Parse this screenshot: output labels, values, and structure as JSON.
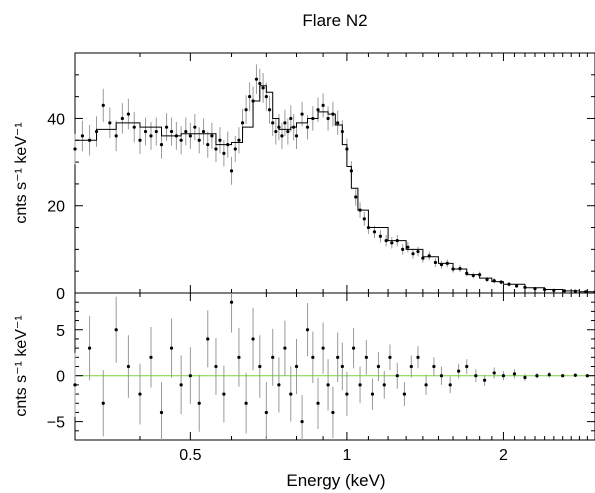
{
  "chart_data": [
    {
      "panel": "spectrum",
      "type": "scatter",
      "title": "Flare N2",
      "xlabel": "Energy (keV)",
      "ylabel": "cnts s⁻¹ keV⁻¹",
      "x_scale": "log",
      "xlim": [
        0.3,
        3.0
      ],
      "ylim": [
        0,
        55
      ],
      "yticks": [
        0,
        20,
        40
      ],
      "ytick_labels": [
        "0",
        "20",
        "40"
      ],
      "model_name": "model",
      "data_name": "data",
      "model": {
        "x": [
          0.3,
          0.33,
          0.36,
          0.4,
          0.44,
          0.48,
          0.52,
          0.56,
          0.6,
          0.63,
          0.66,
          0.68,
          0.7,
          0.72,
          0.74,
          0.76,
          0.78,
          0.8,
          0.84,
          0.88,
          0.92,
          0.95,
          0.98,
          1.0,
          1.02,
          1.05,
          1.1,
          1.2,
          1.3,
          1.4,
          1.5,
          1.6,
          1.7,
          1.8,
          1.9,
          2.0,
          2.2,
          2.4,
          2.6,
          2.8,
          3.0
        ],
        "y": [
          35.0,
          37.5,
          39.0,
          38.0,
          36.0,
          36.5,
          36.5,
          34.0,
          34.5,
          38.0,
          44.0,
          47.5,
          46.0,
          40.0,
          37.5,
          37.5,
          38.0,
          39.0,
          40.0,
          41.5,
          41.0,
          38.5,
          34.0,
          29.0,
          24.0,
          19.0,
          15.0,
          12.0,
          10.0,
          8.3,
          6.8,
          5.5,
          4.2,
          3.4,
          2.6,
          2.0,
          1.2,
          0.8,
          0.5,
          0.3,
          0.2
        ]
      },
      "data": {
        "x": [
          0.3,
          0.31,
          0.32,
          0.33,
          0.34,
          0.35,
          0.36,
          0.37,
          0.38,
          0.39,
          0.4,
          0.41,
          0.42,
          0.43,
          0.44,
          0.45,
          0.46,
          0.47,
          0.48,
          0.49,
          0.5,
          0.51,
          0.52,
          0.53,
          0.54,
          0.55,
          0.56,
          0.57,
          0.58,
          0.59,
          0.6,
          0.61,
          0.62,
          0.63,
          0.64,
          0.65,
          0.66,
          0.67,
          0.68,
          0.69,
          0.7,
          0.71,
          0.72,
          0.73,
          0.74,
          0.75,
          0.76,
          0.77,
          0.78,
          0.79,
          0.8,
          0.82,
          0.84,
          0.86,
          0.88,
          0.9,
          0.92,
          0.94,
          0.96,
          0.98,
          1.0,
          1.02,
          1.04,
          1.06,
          1.08,
          1.1,
          1.13,
          1.16,
          1.19,
          1.22,
          1.25,
          1.28,
          1.31,
          1.34,
          1.37,
          1.4,
          1.44,
          1.48,
          1.52,
          1.56,
          1.6,
          1.65,
          1.7,
          1.75,
          1.8,
          1.86,
          1.92,
          1.98,
          2.05,
          2.12,
          2.2,
          2.3,
          2.4,
          2.5,
          2.62,
          2.75,
          2.88,
          3.0
        ],
        "y": [
          33,
          36,
          35,
          37,
          43,
          39,
          36,
          40,
          41,
          38,
          35,
          37,
          36,
          37,
          34,
          38,
          37,
          36,
          35,
          37,
          36,
          38,
          35,
          37,
          34,
          36,
          33,
          35,
          32,
          34,
          28,
          33,
          35,
          39,
          42,
          45,
          44,
          49,
          48,
          47,
          45,
          42,
          39,
          37,
          38,
          36,
          39,
          37,
          40,
          38,
          36,
          41,
          38,
          40,
          42,
          43,
          40,
          41,
          39,
          37,
          33,
          28,
          22,
          19,
          17,
          15,
          14,
          13,
          12,
          11.5,
          12,
          10,
          10.5,
          9,
          9.5,
          8,
          8.5,
          7,
          6.5,
          6.8,
          5.5,
          5.6,
          4.5,
          4.0,
          4.2,
          3.1,
          2.8,
          2.5,
          2.0,
          1.6,
          1.3,
          1.0,
          0.8,
          0.6,
          0.5,
          0.4,
          0.3,
          0.2
        ],
        "err": [
          3.5,
          3.5,
          3.5,
          3.5,
          3.8,
          3.5,
          3.5,
          3.5,
          3.5,
          3.5,
          3.2,
          3.2,
          3.2,
          3.2,
          3.2,
          3.2,
          3.2,
          3.2,
          3.2,
          3.2,
          3.0,
          3.0,
          3.0,
          3.0,
          3.0,
          3.0,
          3.0,
          3.0,
          3.0,
          3.0,
          3.2,
          3.0,
          3.0,
          3.2,
          3.3,
          3.3,
          3.3,
          3.4,
          3.4,
          3.4,
          3.2,
          3.2,
          3.0,
          3.0,
          3.0,
          3.0,
          3.0,
          3.0,
          3.0,
          3.0,
          3.0,
          2.8,
          2.8,
          2.8,
          2.8,
          2.8,
          2.8,
          2.8,
          2.8,
          2.6,
          2.4,
          2.2,
          2.0,
          1.8,
          1.6,
          1.5,
          1.4,
          1.4,
          1.3,
          1.3,
          1.3,
          1.2,
          1.2,
          1.1,
          1.1,
          1.0,
          1.0,
          1.0,
          0.9,
          0.9,
          0.8,
          0.8,
          0.7,
          0.7,
          0.7,
          0.6,
          0.6,
          0.5,
          0.5,
          0.4,
          0.4,
          0.3,
          0.3,
          0.3,
          0.2,
          0.2,
          0.2,
          0.2
        ]
      }
    },
    {
      "panel": "residuals",
      "type": "scatter",
      "xlabel": "Energy (keV)",
      "ylabel": "cnts s⁻¹ keV⁻¹",
      "x_scale": "log",
      "xlim": [
        0.3,
        3.0
      ],
      "ylim": [
        -7,
        9
      ],
      "yticks": [
        -5,
        0,
        5
      ],
      "ytick_labels": [
        "−5",
        "0",
        "5"
      ],
      "xticks": [
        0.5,
        1,
        2
      ],
      "xtick_labels": [
        "0.5",
        "1",
        "2"
      ],
      "zero_line_color": "#7ad13a",
      "data": {
        "x": [
          0.3,
          0.32,
          0.34,
          0.36,
          0.38,
          0.4,
          0.42,
          0.44,
          0.46,
          0.48,
          0.5,
          0.52,
          0.54,
          0.56,
          0.58,
          0.6,
          0.62,
          0.64,
          0.66,
          0.68,
          0.7,
          0.72,
          0.74,
          0.76,
          0.78,
          0.8,
          0.82,
          0.84,
          0.86,
          0.88,
          0.9,
          0.92,
          0.94,
          0.96,
          0.98,
          1.0,
          1.03,
          1.06,
          1.09,
          1.12,
          1.15,
          1.18,
          1.21,
          1.25,
          1.29,
          1.33,
          1.37,
          1.42,
          1.47,
          1.52,
          1.58,
          1.64,
          1.7,
          1.77,
          1.84,
          1.92,
          2.0,
          2.1,
          2.2,
          2.32,
          2.45,
          2.6,
          2.75,
          2.9
        ],
        "y": [
          -1,
          3,
          -3,
          5,
          1,
          -2,
          2,
          -4,
          3,
          -1,
          0,
          -3,
          4,
          1,
          -2,
          8,
          2,
          -3,
          4,
          1,
          -4,
          2,
          -1,
          3,
          -2,
          1,
          -5,
          5,
          2,
          -3,
          3,
          -1,
          -4,
          2,
          1,
          -2,
          3,
          -1,
          2,
          -2,
          1,
          -1,
          2,
          0,
          -2,
          1,
          2,
          -1,
          1,
          0,
          -1,
          0.5,
          1,
          0,
          -0.5,
          0.3,
          0,
          0.2,
          -0.2,
          0,
          0.1,
          0,
          0.05,
          0
        ],
        "err": [
          3.5,
          3.5,
          3.6,
          3.6,
          3.4,
          3.3,
          3.3,
          3.3,
          3.2,
          3.2,
          3.1,
          3.1,
          3.1,
          3.1,
          3.1,
          3.3,
          3.2,
          3.3,
          3.4,
          3.4,
          3.3,
          3.1,
          3.0,
          3.0,
          3.0,
          3.0,
          2.9,
          2.9,
          2.8,
          2.8,
          2.8,
          2.8,
          2.8,
          2.7,
          2.6,
          2.4,
          2.2,
          2.0,
          1.9,
          1.7,
          1.6,
          1.5,
          1.4,
          1.4,
          1.3,
          1.2,
          1.2,
          1.1,
          1.0,
          1.0,
          0.9,
          0.8,
          0.8,
          0.7,
          0.6,
          0.6,
          0.5,
          0.5,
          0.4,
          0.3,
          0.3,
          0.2,
          0.2,
          0.2
        ]
      }
    }
  ]
}
